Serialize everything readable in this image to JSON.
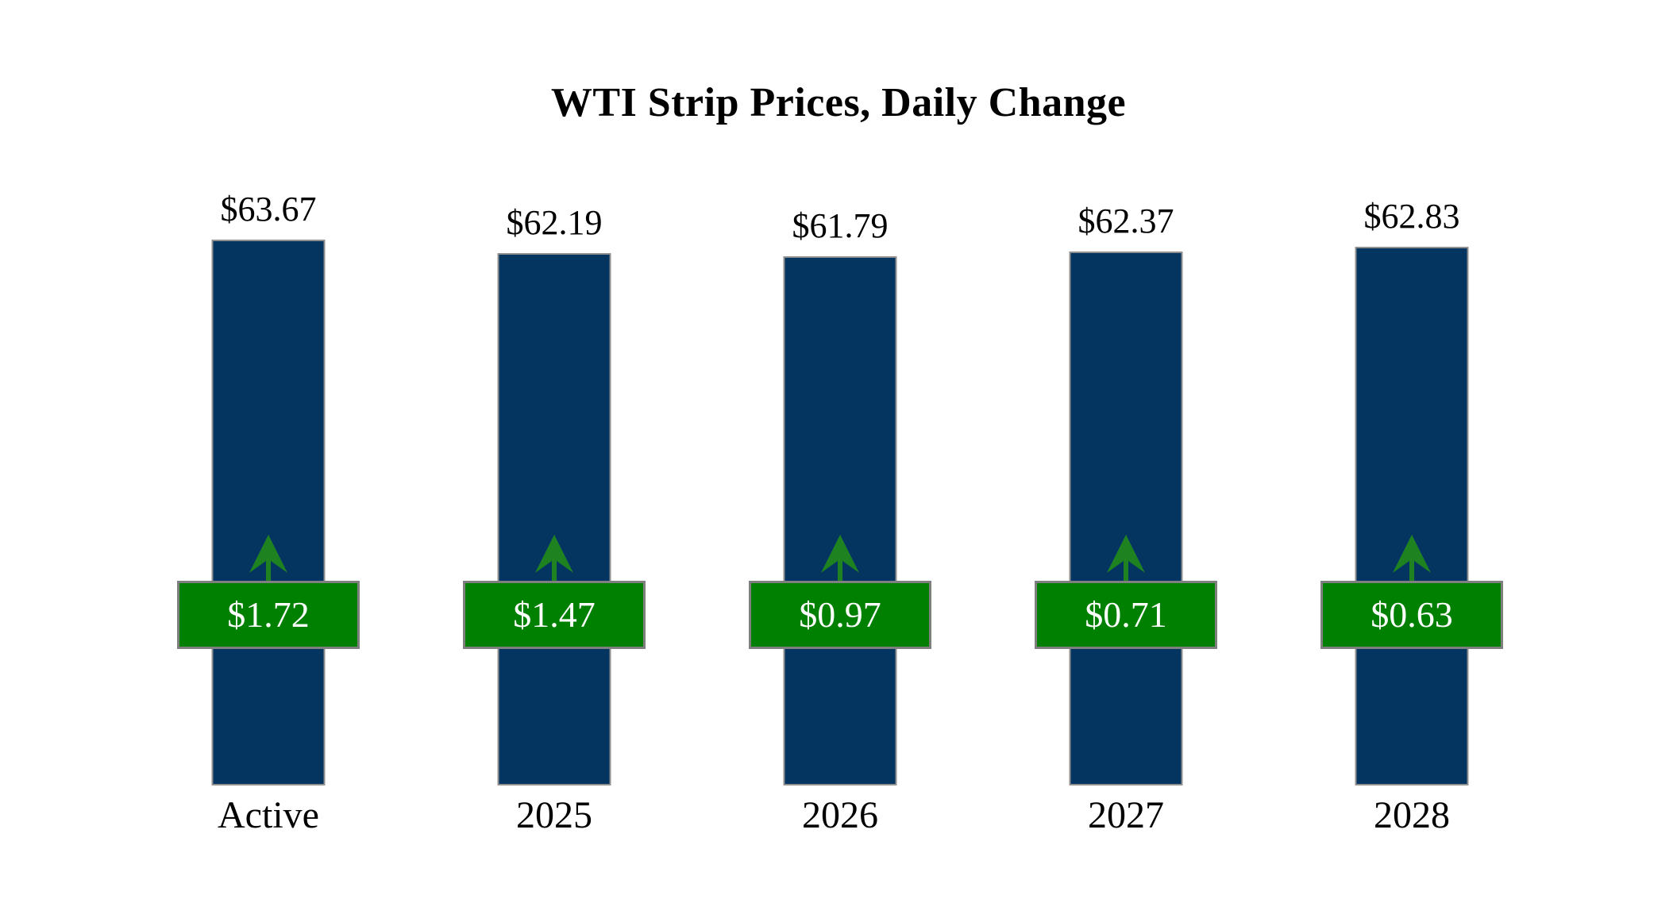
{
  "page": {
    "background": "#ffffff"
  },
  "chart_data": {
    "type": "bar",
    "title": "WTI Strip Prices, Daily Change",
    "categories": [
      "Active",
      "2025",
      "2026",
      "2027",
      "2028"
    ],
    "series": [
      {
        "name": "strip-price",
        "values": [
          63.67,
          62.19,
          61.79,
          62.37,
          62.83
        ],
        "labels": [
          "$63.67",
          "$62.19",
          "$61.79",
          "$62.37",
          "$62.83"
        ],
        "label_position": "outside-end-top"
      },
      {
        "name": "daily-change",
        "values": [
          1.72,
          1.47,
          0.97,
          0.71,
          0.63
        ],
        "labels": [
          "$1.72",
          "$1.47",
          "$0.97",
          "$0.71",
          "$0.63"
        ],
        "direction": [
          "up",
          "up",
          "up",
          "up",
          "up"
        ],
        "label_position": "fixed-mid-badge"
      }
    ],
    "ylim": [
      2,
      64
    ],
    "xlabel": "",
    "ylabel": "",
    "grid": false,
    "legend": false,
    "colors": {
      "bar_fill": "#043561",
      "bar_border": "#909090",
      "badge_fill": "#008000",
      "badge_border": "#7F7F7F",
      "badge_text": "#FFFFFF",
      "arrow": "#1E8220",
      "title_text": "#000000",
      "label_text": "#000000"
    },
    "icons": {
      "change_direction": "up-arrow-icon"
    }
  }
}
